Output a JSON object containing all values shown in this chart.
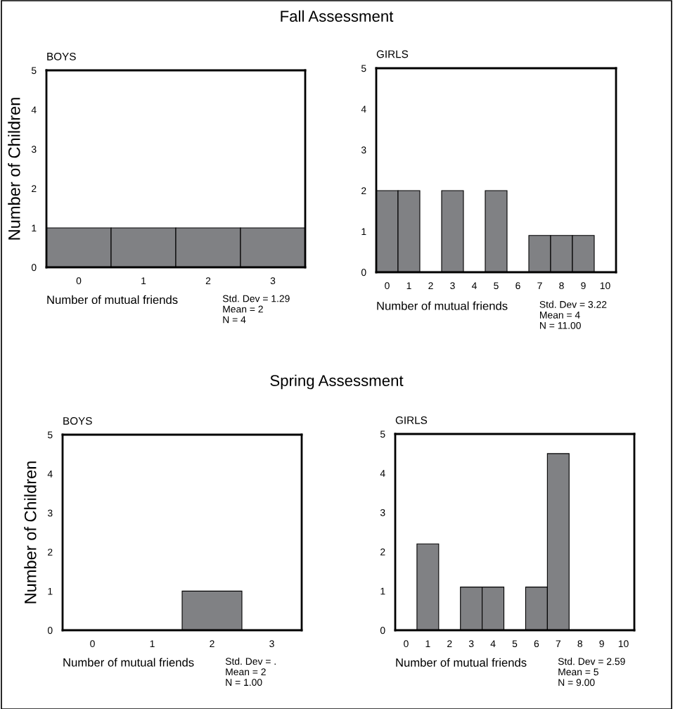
{
  "chart_data": [
    {
      "type": "bar",
      "subtitle": "Fall Assessment",
      "title": "BOYS",
      "ylabel": "Number of Children",
      "xlabel": "Number of mutual friends",
      "categories": [
        "0",
        "1",
        "2",
        "3"
      ],
      "values": [
        1,
        1,
        1,
        1
      ],
      "color": "#808184",
      "ylim": [
        0,
        5
      ],
      "yticks": [
        0,
        1,
        2,
        3,
        4,
        5
      ],
      "grid": false,
      "annotations": [
        "Std. Dev = 1.29\nMean = 2\nN = 4"
      ]
    },
    {
      "type": "bar",
      "title": "GIRLS",
      "xlabel": "Number of mutual friends",
      "categories": [
        "0",
        "1",
        "2",
        "3",
        "4",
        "5",
        "6",
        "7",
        "8",
        "9",
        "10"
      ],
      "values": [
        2,
        2,
        null,
        2,
        null,
        2,
        null,
        0.9,
        0.9,
        0.9,
        null
      ],
      "color": "#808184",
      "ylim": [
        0,
        5
      ],
      "yticks": [
        0,
        1,
        2,
        3,
        4,
        5
      ],
      "grid": false,
      "annotations": [
        "Std. Dev = 3.22\nMean = 4\nN = 11.00"
      ]
    },
    {
      "type": "bar",
      "subtitle": "Spring Assessment",
      "title": "BOYS",
      "ylabel": "Number of Children",
      "xlabel": "Number of mutual friends",
      "categories": [
        "0",
        "1",
        "2",
        "3"
      ],
      "values": [
        null,
        null,
        1,
        null
      ],
      "color": "#808184",
      "ylim": [
        0,
        5
      ],
      "yticks": [
        0,
        1,
        2,
        3,
        4,
        5
      ],
      "grid": false,
      "annotations": [
        "Std. Dev = .\nMean = 2\nN = 1.00"
      ]
    },
    {
      "type": "bar",
      "title": "GIRLS",
      "xlabel": "Number of mutual friends",
      "categories": [
        "0",
        "1",
        "2",
        "3",
        "4",
        "5",
        "6",
        "7",
        "8",
        "9",
        "10"
      ],
      "values": [
        null,
        2.2,
        null,
        1.1,
        1.1,
        null,
        1.1,
        4.5,
        null,
        null,
        null
      ],
      "color": "#808184",
      "ylim": [
        0,
        5
      ],
      "yticks": [
        0,
        1,
        2,
        3,
        4,
        5
      ],
      "grid": false,
      "annotations": [
        "Std. Dev = 2.59\nMean = 5\nN = 9.00"
      ]
    }
  ]
}
